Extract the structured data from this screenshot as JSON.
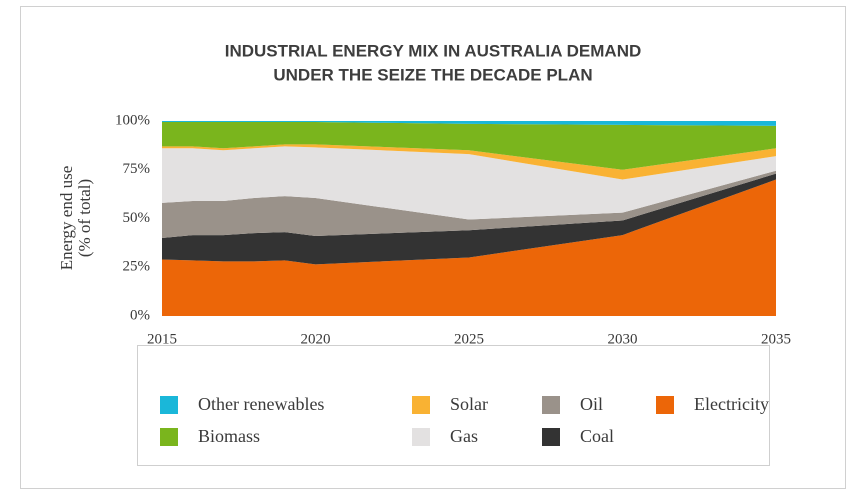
{
  "chart_data": {
    "type": "stacked_area",
    "title": [
      "INDUSTRIAL ENERGY MIX IN AUSTRALIA DEMAND",
      "UNDER THE SEIZE THE DECADE PLAN"
    ],
    "ylabel": [
      "Energy end use",
      "(% of total)"
    ],
    "x": [
      2015,
      2016,
      2017,
      2018,
      2019,
      2020,
      2025,
      2030,
      2035
    ],
    "xlim": [
      2015,
      2035
    ],
    "xticks": [
      2015,
      2020,
      2025,
      2030,
      2035
    ],
    "ylim": [
      0,
      100
    ],
    "yticks": [
      {
        "value": 0,
        "label": "0%"
      },
      {
        "value": 25,
        "label": "25%"
      },
      {
        "value": 50,
        "label": "50%"
      },
      {
        "value": 75,
        "label": "75%"
      },
      {
        "value": 100,
        "label": "100%"
      }
    ],
    "series": [
      {
        "name": "Electricity",
        "color": "#ec6608",
        "values": [
          29,
          28.5,
          28,
          28,
          28.5,
          26.5,
          30,
          41.5,
          70
        ]
      },
      {
        "name": "Coal",
        "color": "#333333",
        "values": [
          11,
          13,
          13.5,
          14.5,
          14.5,
          14.5,
          14,
          7.5,
          3
        ]
      },
      {
        "name": "Oil",
        "color": "#9a928a",
        "values": [
          18,
          17.5,
          17.5,
          18,
          18.5,
          19.5,
          5.5,
          4,
          1.5
        ]
      },
      {
        "name": "Gas",
        "color": "#e3e1e1",
        "values": [
          28,
          27,
          26,
          25.5,
          25.5,
          26,
          33.5,
          17,
          7.5
        ]
      },
      {
        "name": "Solar",
        "color": "#f9b233",
        "values": [
          1,
          1,
          1,
          1,
          1,
          1.5,
          2,
          5,
          4
        ]
      },
      {
        "name": "Biomass",
        "color": "#7ab51d",
        "values": [
          12.5,
          12.5,
          13.5,
          12.5,
          11.5,
          11.5,
          13.5,
          23,
          11.5
        ]
      },
      {
        "name": "Other renewables",
        "color": "#1ab7d9",
        "values": [
          0.5,
          0.5,
          0.5,
          0.5,
          0.5,
          0.5,
          1.5,
          2,
          2.5
        ]
      }
    ]
  }
}
